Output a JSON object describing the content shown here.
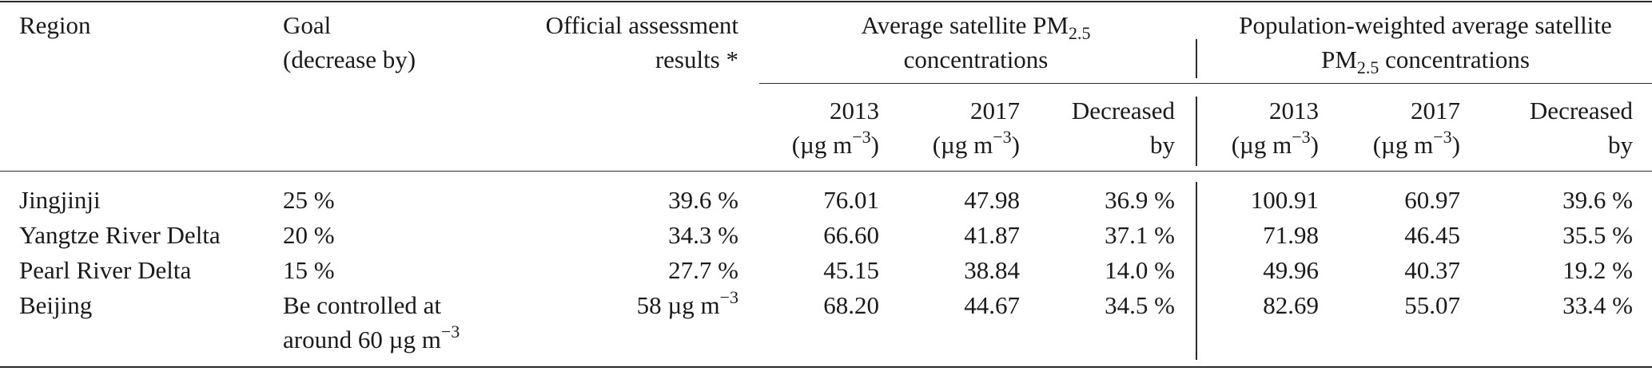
{
  "table": {
    "headers": {
      "region": "Region",
      "goal_line1": "Goal",
      "goal_line2": "(decrease by)",
      "official_line1": "Official assessment",
      "official_line2": "results *",
      "avg_group_line1_prefix": "Average satellite PM",
      "avg_group_line1_sub": "2.5",
      "avg_group_line2": "concentrations",
      "pop_group_line1": "Population-weighted average satellite",
      "pop_group_line2_prefix": "PM",
      "pop_group_line2_sub": "2.5",
      "pop_group_line2_suffix": " concentrations",
      "year_2013": "2013",
      "year_2017": "2017",
      "unit_prefix": "(µg m",
      "unit_sup": "−3",
      "unit_suffix": ")",
      "decreased_line1": "Decreased",
      "decreased_line2": "by"
    },
    "rows": [
      {
        "region": "Jingjinji",
        "goal": "25 %",
        "official": "39.6 %",
        "avg_2013": "76.01",
        "avg_2017": "47.98",
        "avg_decreased": "36.9 %",
        "pop_2013": "100.91",
        "pop_2017": "60.97",
        "pop_decreased": "39.6 %"
      },
      {
        "region": "Yangtze River Delta",
        "goal": "20 %",
        "official": "34.3 %",
        "avg_2013": "66.60",
        "avg_2017": "41.87",
        "avg_decreased": "37.1 %",
        "pop_2013": "71.98",
        "pop_2017": "46.45",
        "pop_decreased": "35.5 %"
      },
      {
        "region": "Pearl River Delta",
        "goal": "15 %",
        "official": "27.7 %",
        "avg_2013": "45.15",
        "avg_2017": "38.84",
        "avg_decreased": "14.0 %",
        "pop_2013": "49.96",
        "pop_2017": "40.37",
        "pop_decreased": "19.2 %"
      },
      {
        "region": "Beijing",
        "goal_line1": "Be controlled at",
        "goal_line2_prefix": "around 60 µg m",
        "goal_line2_sup": "−3",
        "official_prefix": "58 µg m",
        "official_sup": "−3",
        "avg_2013": "68.20",
        "avg_2017": "44.67",
        "avg_decreased": "34.5 %",
        "pop_2013": "82.69",
        "pop_2017": "55.07",
        "pop_decreased": "33.4 %"
      }
    ]
  }
}
